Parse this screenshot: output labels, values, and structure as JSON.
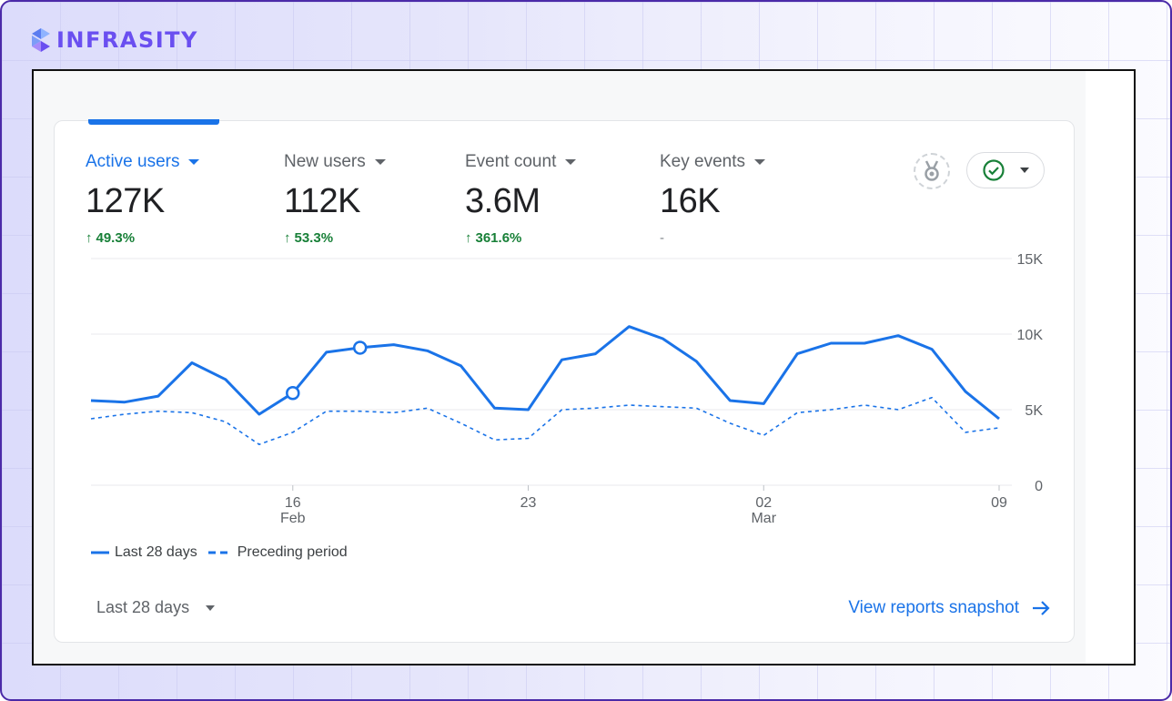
{
  "brand": {
    "name": "INFRASITY"
  },
  "colors": {
    "accent": "#1a73e8",
    "positive": "#188038",
    "brand": "#6a4ff0"
  },
  "metrics": [
    {
      "name": "Active users",
      "value": "127K",
      "change": "49.3%",
      "trend": "up",
      "active": true
    },
    {
      "name": "New users",
      "value": "112K",
      "change": "53.3%",
      "trend": "up",
      "active": false
    },
    {
      "name": "Event count",
      "value": "3.6M",
      "change": "361.6%",
      "trend": "up",
      "active": false
    },
    {
      "name": "Key events",
      "value": "16K",
      "change": "-",
      "trend": "none",
      "active": false
    }
  ],
  "icons": {
    "insights": "medal-icon",
    "status": "check-circle-icon"
  },
  "chart_data": {
    "type": "line",
    "x_tick_labels": [
      {
        "day": "16",
        "month": "Feb"
      },
      {
        "day": "23",
        "month": ""
      },
      {
        "day": "02",
        "month": "Mar"
      },
      {
        "day": "09",
        "month": ""
      }
    ],
    "y_tick_labels": [
      "15K",
      "10K",
      "5K",
      "0"
    ],
    "ylim": [
      0,
      15000
    ],
    "grid": true,
    "series": [
      {
        "name": "Last 28 days",
        "style": "solid",
        "values": [
          5600,
          5500,
          5900,
          8100,
          7000,
          4700,
          6100,
          8800,
          9100,
          9300,
          8900,
          7900,
          5100,
          5000,
          8300,
          8700,
          10500,
          9700,
          8200,
          5600,
          5400,
          8700,
          9400,
          9400,
          9900,
          9000,
          6200,
          4400
        ]
      },
      {
        "name": "Preceding period",
        "style": "dashed",
        "values": [
          4400,
          4700,
          4900,
          4800,
          4200,
          2700,
          3500,
          4900,
          4900,
          4800,
          5100,
          4100,
          3000,
          3100,
          5000,
          5100,
          5300,
          5200,
          5100,
          4100,
          3300,
          4800,
          5000,
          5300,
          5000,
          5800,
          3500,
          3800
        ]
      }
    ],
    "highlight_point_indices": [
      6,
      8
    ],
    "legend": "bottom-left"
  },
  "footer": {
    "date_range": "Last 28 days",
    "link": "View reports snapshot"
  }
}
